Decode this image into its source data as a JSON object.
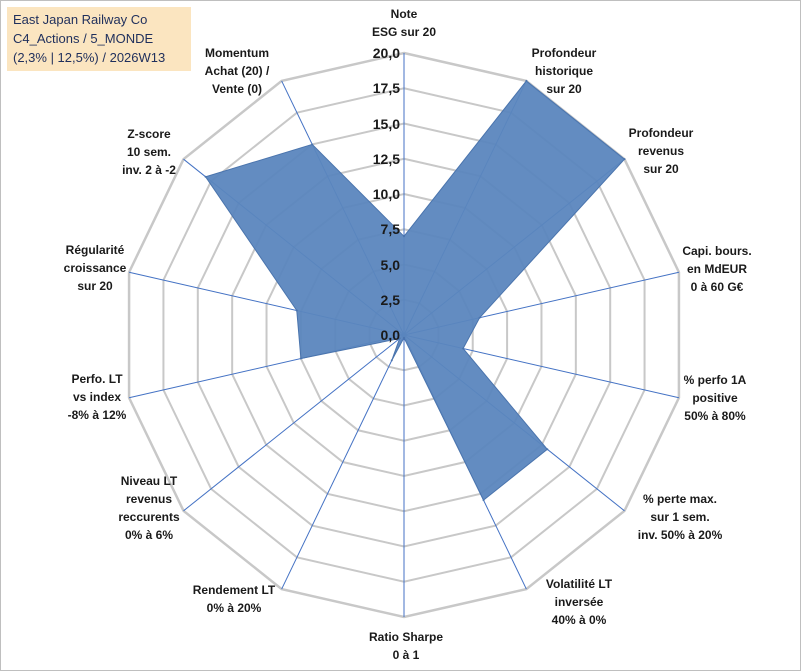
{
  "title": {
    "line1": "East Japan Railway Co",
    "line2": "C4_Actions / 5_MONDE",
    "line3": "(2,3% | 12,5%) / 2026W13"
  },
  "colors": {
    "fill": "#5b86be",
    "fill_stroke": "#4a74ad",
    "grid": "#c8c8c8",
    "spoke": "#4472c4",
    "title_bg": "#fbe5c0"
  },
  "chart_data": {
    "type": "radar",
    "title": "East Japan Railway Co",
    "rmin": 0,
    "rmax": 20,
    "tick_step": 2.5,
    "tick_labels": [
      "0,0",
      "2,5",
      "5,0",
      "7,5",
      "10,0",
      "12,5",
      "15,0",
      "17,5",
      "20,0"
    ],
    "categories": [
      "Note\nESG sur 20",
      "Profondeur\nhistorique\nsur 20",
      "Profondeur\nrevenus\nsur 20",
      "Capi. bours.\nen MdEUR\n0 à 60 G€",
      "% perfo 1A\npositive\n50% à 80%",
      "% perte max.\nsur 1 sem.\ninv. 50% à 20%",
      "Volatilité LT\ninversée\n40% à 0%",
      "Ratio Sharpe\n0 à 1",
      "Rendement LT\n0% à 20%",
      "Niveau LT\nrevenus\nreccurents\n0% à 6%",
      "Perfo. LT\nvs index\n-8% à 12%",
      "Régularité\ncroissance\nsur 20",
      "Z-score\n10 sem.\ninv. 2 à -2",
      "Momentum\nAchat (20) /\nVente (0)"
    ],
    "series": [
      {
        "name": "East Japan Railway Co",
        "values": [
          7.0,
          20.0,
          20.0,
          5.5,
          4.3,
          13.0,
          13.0,
          0.2,
          2.0,
          0.4,
          7.5,
          7.8,
          18.0,
          15.0
        ]
      }
    ]
  }
}
